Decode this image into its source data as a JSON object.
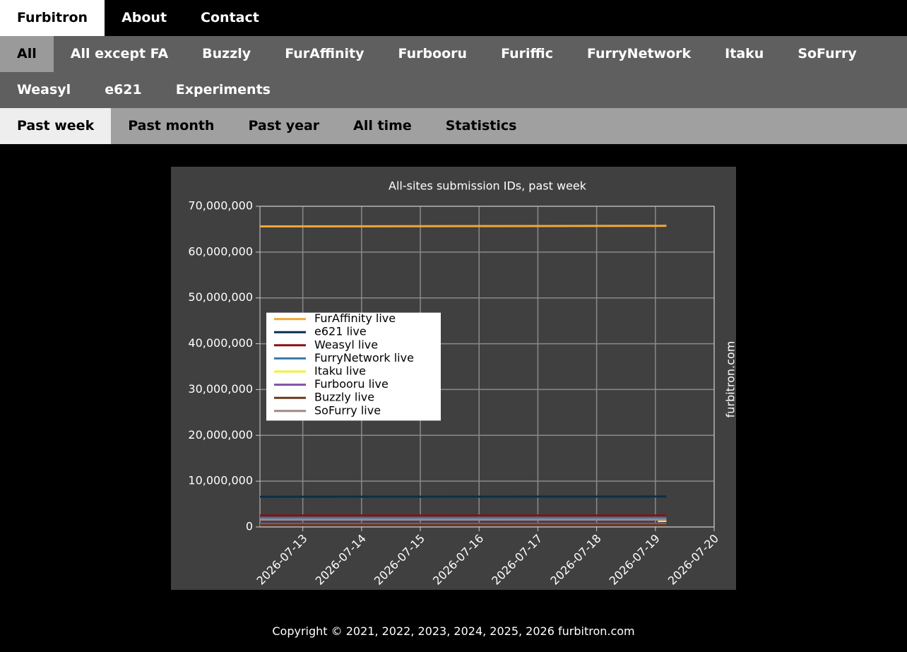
{
  "nav": {
    "brand": "Furbitron",
    "links": [
      "About",
      "Contact"
    ]
  },
  "site_tabs": {
    "items": [
      "All",
      "All except FA",
      "Buzzly",
      "FurAffinity",
      "Furbooru",
      "Furiffic",
      "FurryNetwork",
      "Itaku",
      "SoFurry",
      "Weasyl",
      "e621",
      "Experiments"
    ],
    "active_index": 0
  },
  "period_tabs": {
    "items": [
      "Past week",
      "Past month",
      "Past year",
      "All time",
      "Statistics"
    ],
    "active_index": 0
  },
  "chart_data": {
    "type": "line",
    "title": "All-sites submission IDs, past week",
    "x": [
      "2026-07-12T06:30",
      "2026-07-19T01:00",
      "2026-07-19T04:30"
    ],
    "xlim": [
      "2026-07-12T06:30",
      "2026-07-20"
    ],
    "xticks": [
      "2026-07-13",
      "2026-07-14",
      "2026-07-15",
      "2026-07-16",
      "2026-07-17",
      "2026-07-18",
      "2026-07-19",
      "2026-07-20"
    ],
    "ylim": [
      0,
      70000000
    ],
    "yticks": [
      {
        "value": 0,
        "label": "0"
      },
      {
        "value": 10000000,
        "label": "10,000,000"
      },
      {
        "value": 20000000,
        "label": "20,000,000"
      },
      {
        "value": 30000000,
        "label": "30,000,000"
      },
      {
        "value": 40000000,
        "label": "40,000,000"
      },
      {
        "value": 50000000,
        "label": "50,000,000"
      },
      {
        "value": 60000000,
        "label": "60,000,000"
      },
      {
        "value": 70000000,
        "label": "70,000,000"
      }
    ],
    "grid": true,
    "legend": "center left",
    "watermark": "furbitron.com",
    "series": [
      {
        "name": "FurAffinity live",
        "color": "#f0a838",
        "values": [
          65600000,
          65730000,
          65750000
        ]
      },
      {
        "name": "e621 live",
        "color": "#0b2f4a",
        "values": [
          6600000,
          6640000,
          6650000
        ]
      },
      {
        "name": "Weasyl live",
        "color": "#8b1010",
        "values": [
          2500000,
          2508000,
          2510000
        ]
      },
      {
        "name": "FurryNetwork live",
        "color": "#3a78a8",
        "values": [
          2000000,
          2000000,
          2000000
        ]
      },
      {
        "name": "Itaku live",
        "color": "#f5f032",
        "values": [
          null,
          1300000,
          1310000
        ]
      },
      {
        "name": "Furbooru live",
        "color": "#7b52a8",
        "values": [
          700000,
          705000,
          706000
        ]
      },
      {
        "name": "Buzzly live",
        "color": "#6b3a1a",
        "values": [
          400000,
          402000,
          403000
        ]
      },
      {
        "name": "SoFurry live",
        "color": "#a08888",
        "values": [
          1600000,
          1600000,
          1600000
        ]
      }
    ]
  },
  "footer": "Copyright © 2021, 2022, 2023, 2024, 2025, 2026 furbitron.com"
}
